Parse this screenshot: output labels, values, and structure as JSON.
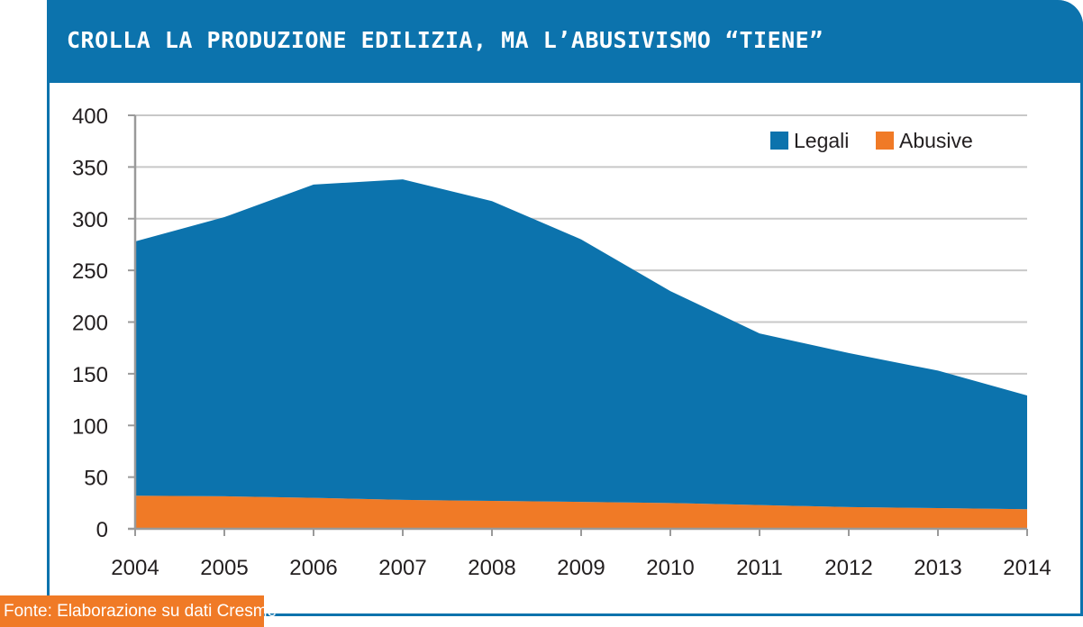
{
  "title": "CROLLA LA PRODUZIONE EDILIZIA, MA L’ABUSIVISMO “TIENE”",
  "source": "Fonte: Elaborazione su dati Cresme",
  "colors": {
    "header": "#0c73ad",
    "legali": "#0c73ad",
    "abusive": "#f07a26",
    "grid": "#c8c8c8",
    "axis": "#9a9a9a",
    "text": "#231f20"
  },
  "chart_data": {
    "type": "area",
    "stacked": true,
    "title": "",
    "xlabel": "",
    "ylabel": "",
    "x": [
      "2004",
      "2005",
      "2006",
      "2007",
      "2008",
      "2009",
      "2010",
      "2011",
      "2012",
      "2013",
      "2014"
    ],
    "ylim": [
      0,
      400
    ],
    "yticks": [
      "0",
      "50",
      "100",
      "150",
      "200",
      "250",
      "300",
      "350",
      "400"
    ],
    "grid": true,
    "legend": "top-right",
    "series": [
      {
        "name": "Abusive",
        "values": [
          32,
          31.5,
          30,
          28,
          27,
          26,
          25,
          23,
          21,
          20,
          19
        ]
      },
      {
        "name": "Legali",
        "values": [
          246,
          270,
          303,
          310,
          290,
          254,
          205,
          166,
          149,
          133,
          110
        ]
      }
    ],
    "legend_entries": [
      "Legali",
      "Abusive"
    ]
  }
}
